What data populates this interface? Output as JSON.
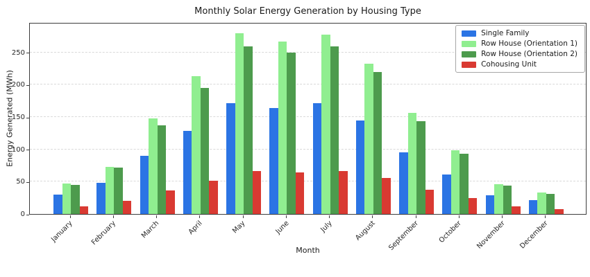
{
  "chart_data": {
    "type": "bar",
    "title": "Monthly Solar Energy Generation by Housing Type",
    "xlabel": "Month",
    "ylabel": "Energy Generated (MWh)",
    "categories": [
      "January",
      "February",
      "March",
      "April",
      "May",
      "June",
      "July",
      "August",
      "September",
      "October",
      "November",
      "December"
    ],
    "series": [
      {
        "name": "Single Family",
        "color": "#2b74e4",
        "values": [
          30,
          48,
          90,
          129,
          172,
          164,
          172,
          145,
          95,
          61,
          29,
          21
        ]
      },
      {
        "name": "Row House (Orientation 1)",
        "color": "#90ee90",
        "values": [
          47,
          73,
          148,
          213,
          280,
          267,
          278,
          233,
          157,
          99,
          46,
          33
        ]
      },
      {
        "name": "Row House (Orientation 2)",
        "color": "#4d9b4d",
        "values": [
          45,
          72,
          137,
          195,
          260,
          250,
          260,
          220,
          144,
          93,
          44,
          31
        ]
      },
      {
        "name": "Cohousing Unit",
        "color": "#d93a32",
        "values": [
          12,
          20,
          36,
          51,
          67,
          64,
          67,
          56,
          38,
          25,
          12,
          8
        ]
      }
    ],
    "ylim": [
      0,
      297
    ],
    "yticks": [
      0,
      50,
      100,
      150,
      200,
      250
    ],
    "grid": "horizontal-dashed",
    "legend_position": "upper right",
    "colors": {
      "spine": "#3c3c3c",
      "grid": "#d9d9d9",
      "background": "#ffffff"
    }
  }
}
